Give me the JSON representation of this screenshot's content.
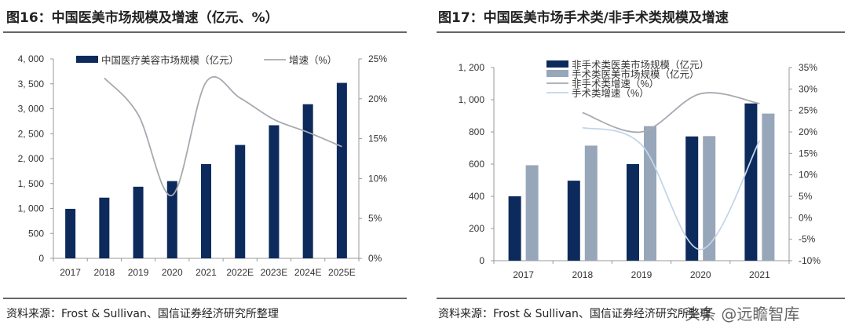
{
  "left": {
    "title": "图16：中国医美市场规模及增速（亿元、%）",
    "source": "资料来源：Frost & Sullivan、国信证券经济研究所整理"
  },
  "right": {
    "title": "图17：中国医美市场手术类/非手术类规模及增速",
    "source": "资料来源：Frost & Sullivan、国信证券经济研究所整理"
  },
  "watermark": "头条 @远瞻智库",
  "chart_data": [
    {
      "type": "bar+line",
      "categories": [
        "2017",
        "2018",
        "2019",
        "2020",
        "2021",
        "2022E",
        "2023E",
        "2024E",
        "2025E"
      ],
      "series": [
        {
          "name": "中国医疗美容市场规模（亿元）",
          "kind": "bar",
          "axis": "left",
          "color": "#0d2a5c",
          "values": [
            993,
            1217,
            1436,
            1549,
            1891,
            2274,
            2669,
            3091,
            3519
          ]
        },
        {
          "name": "增速（%）",
          "kind": "line",
          "axis": "right",
          "color": "#a6aab0",
          "values": [
            null,
            22.6,
            18.0,
            7.9,
            22.1,
            20.1,
            17.4,
            15.8,
            14.0
          ]
        }
      ],
      "ylim_left": [
        0,
        4000
      ],
      "yticks_left": [
        "0",
        "500",
        "1, 000",
        "1, 500",
        "2, 000",
        "2, 500",
        "3, 000",
        "3, 500",
        "4, 000"
      ],
      "ylim_right": [
        0,
        25
      ],
      "yticks_right": [
        "0%",
        "5%",
        "10%",
        "15%",
        "20%",
        "25%"
      ],
      "legend": "top",
      "grid": false
    },
    {
      "type": "bar+line",
      "categories": [
        "2017",
        "2018",
        "2019",
        "2020",
        "2021"
      ],
      "series": [
        {
          "name": "非手术类医美市场规模（亿元）",
          "kind": "bar",
          "axis": "left",
          "color": "#0d2a5c",
          "values": [
            400,
            497,
            600,
            772,
            977
          ]
        },
        {
          "name": "手术类医美市场规模（亿元）",
          "kind": "bar",
          "axis": "left",
          "color": "#97a6b9",
          "values": [
            593,
            715,
            836,
            774,
            914
          ]
        },
        {
          "name": "非手术类增速（%）",
          "kind": "line",
          "axis": "right",
          "color": "#a6aab0",
          "values": [
            null,
            24.5,
            20.0,
            28.9,
            26.6
          ]
        },
        {
          "name": "手术类增速（%）",
          "kind": "line",
          "axis": "right",
          "color": "#c3d6e8",
          "values": [
            null,
            21.0,
            17.0,
            -7.4,
            18.0
          ]
        }
      ],
      "ylim_left": [
        0,
        1200
      ],
      "yticks_left": [
        "0",
        "200",
        "400",
        "600",
        "800",
        "1, 000",
        "1, 200"
      ],
      "ylim_right": [
        -10,
        35
      ],
      "yticks_right": [
        "-10%",
        "-5%",
        "0%",
        "5%",
        "10%",
        "15%",
        "20%",
        "25%",
        "30%",
        "35%"
      ],
      "legend": "top",
      "grid": false
    }
  ]
}
